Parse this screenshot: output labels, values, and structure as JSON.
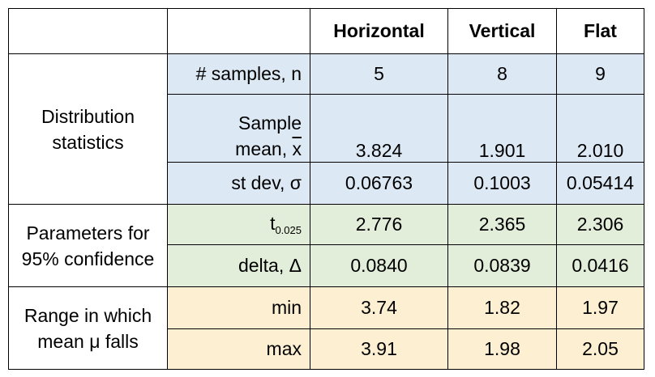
{
  "headers": {
    "corner": "",
    "sub_corner": "",
    "horizontal": "Horizontal",
    "vertical": "Vertical",
    "flat": "Flat"
  },
  "groups": {
    "distribution": {
      "line1": "Distribution",
      "line2": "statistics"
    },
    "parameters": {
      "line1": "Parameters for",
      "line2": "95% confidence"
    },
    "range": {
      "line1": "Range in which",
      "line2": "mean μ falls"
    }
  },
  "rows": {
    "n": {
      "label": "# samples, n",
      "horizontal": "5",
      "vertical": "8",
      "flat": "9"
    },
    "mean": {
      "label_line1": "Sample",
      "label_line2_prefix": "mean, ",
      "label_symbol": "x",
      "horizontal": "3.824",
      "vertical": "1.901",
      "flat": "2.010"
    },
    "stdev": {
      "label": "st dev, σ",
      "horizontal": "0.06763",
      "vertical": "0.1003",
      "flat": "0.05414"
    },
    "t": {
      "label_base": "t",
      "label_sub": "0.025",
      "horizontal": "2.776",
      "vertical": "2.365",
      "flat": "2.306"
    },
    "delta": {
      "label": "delta, Δ",
      "horizontal": "0.0840",
      "vertical": "0.0839",
      "flat": "0.0416"
    },
    "min": {
      "label": "min",
      "horizontal": "3.74",
      "vertical": "1.82",
      "flat": "1.97"
    },
    "max": {
      "label": "max",
      "horizontal": "3.91",
      "vertical": "1.98",
      "flat": "2.05"
    }
  },
  "colors": {
    "distribution_bg": "#dce9f5",
    "parameters_bg": "#e2eed9",
    "range_bg": "#fdefd2"
  }
}
